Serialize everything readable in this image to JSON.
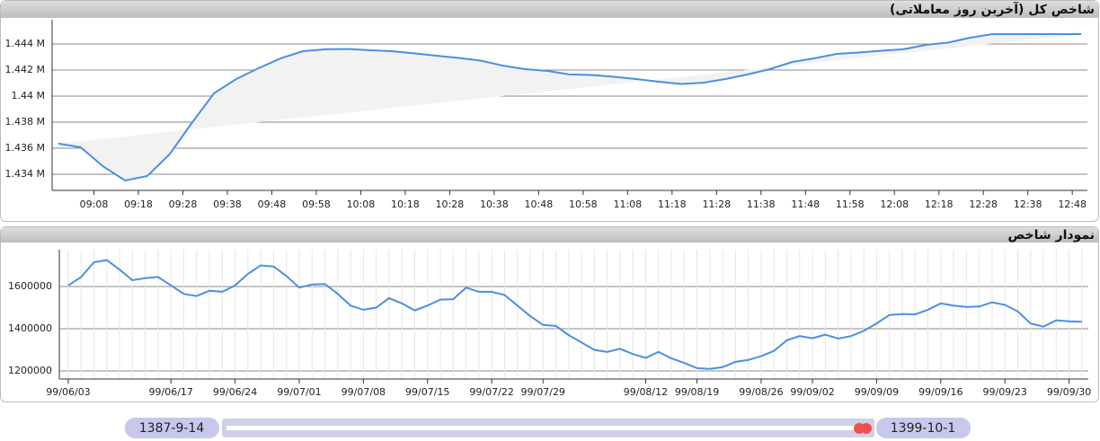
{
  "chart_data": [
    {
      "type": "line",
      "title": "شاخص کل (آخرین روز معاملاتی)",
      "color": "#4a90e2",
      "area": true,
      "grid": true,
      "x": [
        540,
        545,
        550,
        555,
        560,
        565,
        570,
        575,
        580,
        585,
        590,
        595,
        600,
        605,
        610,
        615,
        620,
        625,
        630,
        635,
        640,
        645,
        650,
        655,
        660,
        665,
        670,
        675,
        680,
        685,
        690,
        695,
        700,
        705,
        710,
        715,
        720,
        725,
        730,
        735,
        740,
        745,
        750,
        755,
        760,
        765,
        770
      ],
      "values": [
        1.43635,
        1.43607,
        1.43462,
        1.43352,
        1.43386,
        1.43552,
        1.43793,
        1.44021,
        1.44131,
        1.44214,
        1.4429,
        1.44345,
        1.44359,
        1.44362,
        1.44352,
        1.44345,
        1.44328,
        1.4431,
        1.44293,
        1.44272,
        1.44234,
        1.44207,
        1.44193,
        1.44166,
        1.44162,
        1.44148,
        1.44131,
        1.4411,
        1.44093,
        1.44103,
        1.44131,
        1.44166,
        1.44207,
        1.44262,
        1.4429,
        1.44324,
        1.44334,
        1.44348,
        1.44359,
        1.44393,
        1.4441,
        1.44448,
        1.44476,
        1.44476,
        1.44476,
        1.44476,
        1.44476
      ],
      "xlim": [
        538.6,
        771.4
      ],
      "xticks": [
        {
          "value": 548,
          "label": "09:08"
        },
        {
          "value": 558,
          "label": "09:18"
        },
        {
          "value": 568,
          "label": "09:28"
        },
        {
          "value": 578,
          "label": "09:38"
        },
        {
          "value": 588,
          "label": "09:48"
        },
        {
          "value": 598,
          "label": "09:58"
        },
        {
          "value": 608,
          "label": "10:08"
        },
        {
          "value": 618,
          "label": "10:18"
        },
        {
          "value": 628,
          "label": "10:28"
        },
        {
          "value": 638,
          "label": "10:38"
        },
        {
          "value": 648,
          "label": "10:48"
        },
        {
          "value": 658,
          "label": "10:58"
        },
        {
          "value": 668,
          "label": "11:08"
        },
        {
          "value": 678,
          "label": "11:18"
        },
        {
          "value": 688,
          "label": "11:28"
        },
        {
          "value": 698,
          "label": "11:38"
        },
        {
          "value": 708,
          "label": "11:48"
        },
        {
          "value": 718,
          "label": "11:58"
        },
        {
          "value": 728,
          "label": "12:08"
        },
        {
          "value": 738,
          "label": "12:18"
        },
        {
          "value": 748,
          "label": "12:28"
        },
        {
          "value": 758,
          "label": "12:38"
        },
        {
          "value": 768,
          "label": "12:48"
        }
      ],
      "ylim": [
        1.43276,
        1.44586
      ],
      "yticks": [
        {
          "value": 1.434,
          "label": "1.434 M"
        },
        {
          "value": 1.436,
          "label": "1.436 M"
        },
        {
          "value": 1.438,
          "label": "1.438 M"
        },
        {
          "value": 1.44,
          "label": "1.44 M"
        },
        {
          "value": 1.442,
          "label": "1.442 M"
        },
        {
          "value": 1.444,
          "label": "1.444 M"
        }
      ]
    },
    {
      "type": "line",
      "title": "نمودار شاخص",
      "color": "#4a90e2",
      "grid": true,
      "categories": [
        "99/06/03",
        null,
        null,
        null,
        null,
        null,
        null,
        null,
        "99/06/17",
        null,
        null,
        null,
        null,
        "99/06/24",
        null,
        null,
        null,
        null,
        "99/07/01",
        null,
        null,
        null,
        null,
        "99/07/08",
        null,
        null,
        null,
        null,
        "99/07/15",
        null,
        null,
        null,
        null,
        "99/07/22",
        null,
        null,
        null,
        "99/07/29",
        null,
        null,
        null,
        null,
        null,
        null,
        null,
        "99/08/12",
        null,
        null,
        null,
        "99/08/19",
        null,
        null,
        null,
        null,
        "99/08/26",
        null,
        null,
        null,
        "99/09/02",
        null,
        null,
        null,
        null,
        "99/09/09",
        null,
        null,
        null,
        null,
        "99/09/16",
        null,
        null,
        null,
        null,
        "99/09/23",
        null,
        null,
        null,
        null,
        "99/09/30",
        null
      ],
      "values": [
        1605000,
        1645000,
        1715000,
        1725000,
        1680000,
        1630000,
        1640000,
        1645000,
        1605000,
        1565000,
        1555000,
        1580000,
        1575000,
        1605000,
        1660000,
        1700000,
        1695000,
        1650000,
        1595000,
        1610000,
        1612000,
        1565000,
        1510000,
        1490000,
        1500000,
        1545000,
        1520000,
        1487000,
        1510000,
        1538000,
        1540000,
        1595000,
        1575000,
        1575000,
        1560000,
        1510000,
        1460000,
        1418000,
        1413000,
        1370000,
        1335000,
        1300000,
        1290000,
        1305000,
        1280000,
        1262000,
        1290000,
        1260000,
        1238000,
        1213000,
        1210000,
        1218000,
        1243000,
        1252000,
        1270000,
        1295000,
        1345000,
        1365000,
        1355000,
        1372000,
        1353000,
        1365000,
        1390000,
        1425000,
        1465000,
        1470000,
        1468000,
        1490000,
        1520000,
        1510000,
        1503000,
        1505000,
        1525000,
        1513000,
        1482000,
        1425000,
        1410000,
        1440000,
        1435000,
        1433000
      ],
      "ylim": [
        1161700,
        1774500
      ],
      "yticks": [
        1200000,
        1400000,
        1600000
      ]
    }
  ],
  "slider": {
    "start_label": "1387-9-14",
    "end_label": "1399-10-1"
  }
}
